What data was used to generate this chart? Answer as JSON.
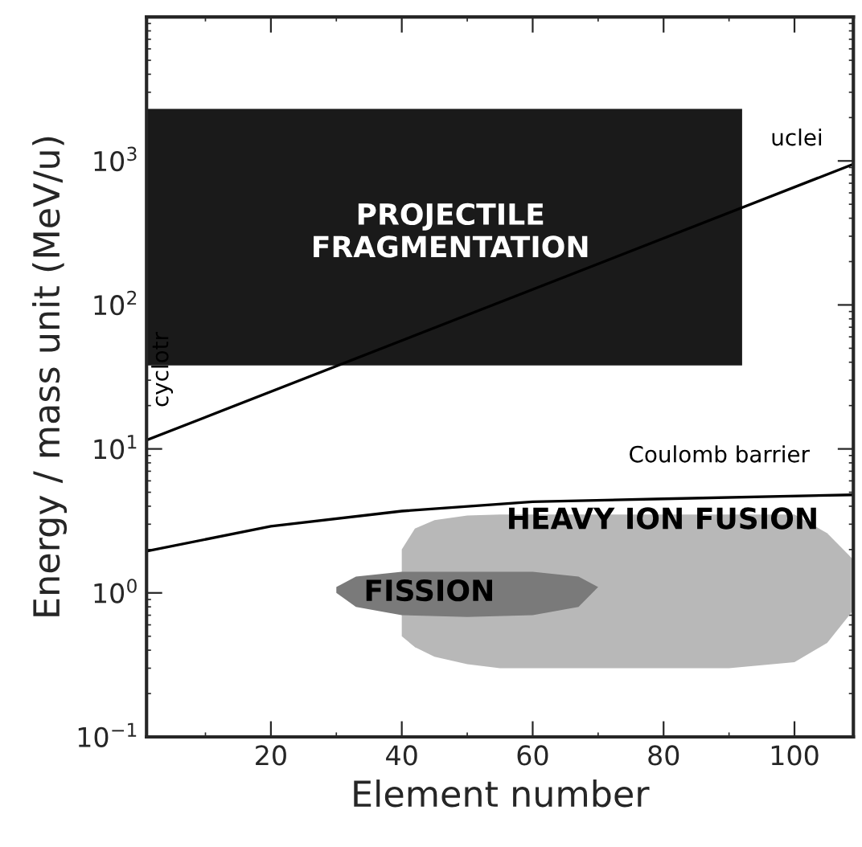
{
  "chart_data": {
    "type": "line",
    "xlabel": "Element number",
    "ylabel": "Energy / mass unit (MeV/u)",
    "log": "y",
    "xlim": [
      1,
      109
    ],
    "ylim": [
      0.1,
      10000
    ],
    "xticks": [
      20,
      40,
      60,
      80,
      100
    ],
    "yticks": [
      {
        "value": 0.1,
        "label": "10$^{−1}$"
      },
      {
        "value": 1,
        "label": "10$^{0}$"
      },
      {
        "value": 10,
        "label": "10$^{1}$"
      },
      {
        "value": 100,
        "label": "10$^{2}$"
      },
      {
        "value": 1000,
        "label": "10$^{3}$"
      }
    ],
    "grid": false,
    "legend": false,
    "series": [
      {
        "type": "area",
        "color": "#1a1a1a",
        "x": [
          1,
          92,
          92,
          1
        ],
        "values": [
          2300,
          2300,
          38,
          38
        ]
      },
      {
        "type": "area",
        "color": "#b8b8b8",
        "x": [
          40,
          42,
          45,
          50,
          55,
          60,
          70,
          80,
          90,
          100,
          105,
          109,
          109,
          105,
          100,
          90,
          80,
          70,
          60,
          55,
          50,
          45,
          42,
          40
        ],
        "values": [
          2.0,
          2.8,
          3.2,
          3.45,
          3.5,
          3.5,
          3.5,
          3.5,
          3.5,
          3.5,
          2.6,
          1.7,
          0.76,
          0.45,
          0.33,
          0.3,
          0.3,
          0.3,
          0.3,
          0.3,
          0.32,
          0.36,
          0.42,
          0.5
        ]
      },
      {
        "type": "area",
        "color": "#7a7a7a",
        "x": [
          30,
          33,
          40,
          50,
          60,
          67,
          70,
          67,
          60,
          50,
          40,
          33,
          30
        ],
        "values": [
          1.1,
          1.3,
          1.4,
          1.4,
          1.4,
          1.3,
          1.1,
          0.8,
          0.7,
          0.68,
          0.7,
          0.8,
          1.0
        ]
      },
      {
        "color": "#000000",
        "x": [
          1,
          109
        ],
        "values": [
          11.5,
          950
        ]
      },
      {
        "color": "#000000",
        "x": [
          1,
          20,
          40,
          60,
          80,
          109
        ],
        "values": [
          1.95,
          2.9,
          3.7,
          4.3,
          4.5,
          4.8
        ]
      }
    ],
    "annotations": [
      "PROJECTILE\nFRAGMENTATION",
      "HEAVY ION FUSION",
      "FISSION",
      "Coulomb barrier",
      "cyclotr",
      "uclei"
    ]
  }
}
